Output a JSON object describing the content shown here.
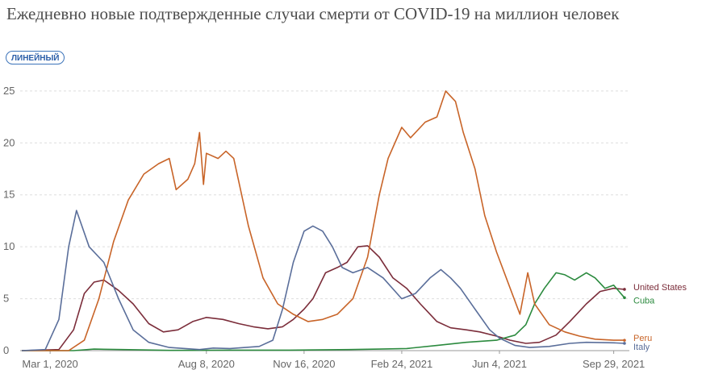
{
  "title": "Ежедневно новые подтвержденные случаи смерти от COVID-19 на миллион человек",
  "scale_button": "ЛИНЕЙНЫЙ",
  "chart_data": {
    "type": "line",
    "title": "Ежедневно новые подтвержденные случаи смерти от COVID-19 на миллион человек",
    "x_range": [
      "2020-02-01",
      "2021-10-15"
    ],
    "ylim": [
      0,
      26
    ],
    "y_ticks": [
      0,
      5,
      10,
      15,
      20,
      25
    ],
    "x_ticks": [
      {
        "date": "2020-03-01",
        "label": "Mar 1, 2020"
      },
      {
        "date": "2020-08-08",
        "label": "Aug 8, 2020"
      },
      {
        "date": "2020-11-16",
        "label": "Nov 16, 2020"
      },
      {
        "date": "2021-02-24",
        "label": "Feb 24, 2021"
      },
      {
        "date": "2021-06-04",
        "label": "Jun 4, 2021"
      },
      {
        "date": "2021-09-29",
        "label": "Sep 29, 2021"
      }
    ],
    "grid": "horizontal dashed",
    "legend": "labels at line ends, right",
    "series": [
      {
        "name": "United States",
        "color": "#7b2d3a",
        "points": [
          [
            "2020-02-01",
            0
          ],
          [
            "2020-03-10",
            0.1
          ],
          [
            "2020-03-25",
            2.0
          ],
          [
            "2020-04-05",
            5.5
          ],
          [
            "2020-04-15",
            6.6
          ],
          [
            "2020-04-25",
            6.8
          ],
          [
            "2020-05-10",
            5.8
          ],
          [
            "2020-05-25",
            4.5
          ],
          [
            "2020-06-10",
            2.6
          ],
          [
            "2020-06-25",
            1.8
          ],
          [
            "2020-07-10",
            2.0
          ],
          [
            "2020-07-25",
            2.8
          ],
          [
            "2020-08-08",
            3.2
          ],
          [
            "2020-08-25",
            3.0
          ],
          [
            "2020-09-10",
            2.6
          ],
          [
            "2020-09-25",
            2.3
          ],
          [
            "2020-10-10",
            2.1
          ],
          [
            "2020-10-25",
            2.3
          ],
          [
            "2020-11-05",
            3.0
          ],
          [
            "2020-11-16",
            4.0
          ],
          [
            "2020-11-25",
            5.0
          ],
          [
            "2020-12-08",
            7.5
          ],
          [
            "2020-12-20",
            8.0
          ],
          [
            "2020-12-30",
            8.5
          ],
          [
            "2021-01-10",
            10.0
          ],
          [
            "2021-01-20",
            10.1
          ],
          [
            "2021-02-01",
            9.0
          ],
          [
            "2021-02-15",
            7.0
          ],
          [
            "2021-03-01",
            6.0
          ],
          [
            "2021-03-15",
            4.5
          ],
          [
            "2021-04-01",
            2.8
          ],
          [
            "2021-04-15",
            2.2
          ],
          [
            "2021-05-01",
            2.0
          ],
          [
            "2021-05-15",
            1.8
          ],
          [
            "2021-06-01",
            1.4
          ],
          [
            "2021-06-15",
            1.0
          ],
          [
            "2021-07-01",
            0.7
          ],
          [
            "2021-07-15",
            0.8
          ],
          [
            "2021-08-01",
            1.5
          ],
          [
            "2021-08-15",
            2.8
          ],
          [
            "2021-09-01",
            4.5
          ],
          [
            "2021-09-15",
            5.7
          ],
          [
            "2021-09-29",
            6.0
          ],
          [
            "2021-10-10",
            5.9
          ]
        ]
      },
      {
        "name": "Cuba",
        "color": "#2b8a3e",
        "points": [
          [
            "2020-02-01",
            0
          ],
          [
            "2020-03-25",
            0
          ],
          [
            "2020-04-15",
            0.15
          ],
          [
            "2020-05-15",
            0.1
          ],
          [
            "2020-07-01",
            0.02
          ],
          [
            "2020-09-01",
            0.05
          ],
          [
            "2020-11-01",
            0.05
          ],
          [
            "2021-01-01",
            0.1
          ],
          [
            "2021-02-01",
            0.15
          ],
          [
            "2021-03-01",
            0.2
          ],
          [
            "2021-04-01",
            0.5
          ],
          [
            "2021-05-01",
            0.8
          ],
          [
            "2021-06-01",
            1.0
          ],
          [
            "2021-06-20",
            1.5
          ],
          [
            "2021-07-01",
            2.5
          ],
          [
            "2021-07-10",
            4.5
          ],
          [
            "2021-07-20",
            6.0
          ],
          [
            "2021-08-01",
            7.5
          ],
          [
            "2021-08-10",
            7.3
          ],
          [
            "2021-08-20",
            6.8
          ],
          [
            "2021-09-01",
            7.5
          ],
          [
            "2021-09-10",
            7.0
          ],
          [
            "2021-09-20",
            6.0
          ],
          [
            "2021-09-29",
            6.3
          ],
          [
            "2021-10-10",
            5.1
          ]
        ]
      },
      {
        "name": "Peru",
        "color": "#c86428",
        "points": [
          [
            "2020-02-01",
            0
          ],
          [
            "2020-03-20",
            0
          ],
          [
            "2020-04-05",
            1.0
          ],
          [
            "2020-04-20",
            5.0
          ],
          [
            "2020-05-05",
            10.5
          ],
          [
            "2020-05-20",
            14.5
          ],
          [
            "2020-06-05",
            17.0
          ],
          [
            "2020-06-20",
            18.0
          ],
          [
            "2020-07-01",
            18.5
          ],
          [
            "2020-07-08",
            15.5
          ],
          [
            "2020-07-20",
            16.5
          ],
          [
            "2020-07-27",
            18.0
          ],
          [
            "2020-08-01",
            21.0
          ],
          [
            "2020-08-05",
            16.0
          ],
          [
            "2020-08-08",
            19.0
          ],
          [
            "2020-08-20",
            18.5
          ],
          [
            "2020-08-28",
            19.2
          ],
          [
            "2020-09-05",
            18.5
          ],
          [
            "2020-09-20",
            12.0
          ],
          [
            "2020-10-05",
            7.0
          ],
          [
            "2020-10-20",
            4.5
          ],
          [
            "2020-11-05",
            3.5
          ],
          [
            "2020-11-20",
            2.8
          ],
          [
            "2020-12-05",
            3.0
          ],
          [
            "2020-12-20",
            3.5
          ],
          [
            "2021-01-05",
            5.0
          ],
          [
            "2021-01-20",
            9.0
          ],
          [
            "2021-02-01",
            15.0
          ],
          [
            "2021-02-10",
            18.5
          ],
          [
            "2021-02-24",
            21.5
          ],
          [
            "2021-03-05",
            20.5
          ],
          [
            "2021-03-20",
            22.0
          ],
          [
            "2021-04-01",
            22.5
          ],
          [
            "2021-04-10",
            25.0
          ],
          [
            "2021-04-20",
            24.0
          ],
          [
            "2021-04-28",
            21.0
          ],
          [
            "2021-05-10",
            17.5
          ],
          [
            "2021-05-20",
            13.0
          ],
          [
            "2021-06-01",
            9.5
          ],
          [
            "2021-06-15",
            6.0
          ],
          [
            "2021-06-25",
            3.5
          ],
          [
            "2021-07-03",
            7.5
          ],
          [
            "2021-07-10",
            4.5
          ],
          [
            "2021-07-25",
            2.5
          ],
          [
            "2021-08-10",
            1.8
          ],
          [
            "2021-08-25",
            1.4
          ],
          [
            "2021-09-10",
            1.1
          ],
          [
            "2021-09-29",
            1.0
          ],
          [
            "2021-10-10",
            1.0
          ]
        ]
      },
      {
        "name": "Italy",
        "color": "#5a6e9a",
        "points": [
          [
            "2020-02-01",
            0
          ],
          [
            "2020-02-25",
            0.1
          ],
          [
            "2020-03-10",
            3.0
          ],
          [
            "2020-03-20",
            10.0
          ],
          [
            "2020-03-28",
            13.5
          ],
          [
            "2020-04-10",
            10.0
          ],
          [
            "2020-04-25",
            8.5
          ],
          [
            "2020-05-10",
            5.0
          ],
          [
            "2020-05-25",
            2.0
          ],
          [
            "2020-06-10",
            0.8
          ],
          [
            "2020-07-01",
            0.3
          ],
          [
            "2020-08-01",
            0.1
          ],
          [
            "2020-08-15",
            0.25
          ],
          [
            "2020-09-01",
            0.2
          ],
          [
            "2020-10-01",
            0.4
          ],
          [
            "2020-10-15",
            1.0
          ],
          [
            "2020-10-25",
            4.0
          ],
          [
            "2020-11-05",
            8.5
          ],
          [
            "2020-11-16",
            11.5
          ],
          [
            "2020-11-25",
            12.0
          ],
          [
            "2020-12-05",
            11.5
          ],
          [
            "2020-12-15",
            10.0
          ],
          [
            "2020-12-25",
            8.0
          ],
          [
            "2021-01-05",
            7.5
          ],
          [
            "2021-01-20",
            8.0
          ],
          [
            "2021-02-05",
            7.0
          ],
          [
            "2021-02-24",
            5.0
          ],
          [
            "2021-03-10",
            5.5
          ],
          [
            "2021-03-25",
            7.0
          ],
          [
            "2021-04-05",
            7.8
          ],
          [
            "2021-04-15",
            7.0
          ],
          [
            "2021-04-25",
            6.0
          ],
          [
            "2021-05-10",
            4.0
          ],
          [
            "2021-05-25",
            2.0
          ],
          [
            "2021-06-04",
            1.2
          ],
          [
            "2021-06-20",
            0.5
          ],
          [
            "2021-07-05",
            0.3
          ],
          [
            "2021-07-25",
            0.4
          ],
          [
            "2021-08-15",
            0.7
          ],
          [
            "2021-09-01",
            0.8
          ],
          [
            "2021-09-29",
            0.75
          ],
          [
            "2021-10-10",
            0.7
          ]
        ]
      }
    ]
  }
}
